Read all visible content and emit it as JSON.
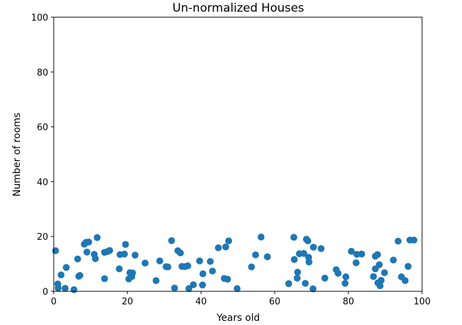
{
  "chart_data": {
    "type": "scatter",
    "title": "Un-normalized Houses",
    "xlabel": "Years old",
    "ylabel": "Number of rooms",
    "xlim": [
      0,
      100
    ],
    "ylim": [
      0,
      100
    ],
    "xticks": [
      "0",
      "20",
      "40",
      "60",
      "80",
      "100"
    ],
    "yticks": [
      "0",
      "20",
      "40",
      "60",
      "80",
      "100"
    ],
    "grid": false,
    "marker_color": "#1f77b4",
    "points": [
      [
        0.5,
        14.8
      ],
      [
        1.2,
        1.2
      ],
      [
        1.1,
        2.7
      ],
      [
        2.0,
        6.0
      ],
      [
        3.4,
        8.7
      ],
      [
        3.1,
        1.1
      ],
      [
        5.5,
        0.6
      ],
      [
        6.8,
        5.5
      ],
      [
        6.5,
        11.8
      ],
      [
        7.1,
        5.8
      ],
      [
        8.3,
        17.2
      ],
      [
        8.8,
        17.9
      ],
      [
        9.0,
        14.3
      ],
      [
        9.5,
        18.0
      ],
      [
        11.0,
        13.5
      ],
      [
        11.3,
        11.9
      ],
      [
        11.8,
        19.6
      ],
      [
        13.8,
        4.6
      ],
      [
        13.8,
        14.2
      ],
      [
        14.6,
        14.5
      ],
      [
        15.2,
        14.9
      ],
      [
        17.8,
        8.2
      ],
      [
        18.0,
        13.4
      ],
      [
        19.2,
        13.6
      ],
      [
        19.5,
        17.1
      ],
      [
        20.4,
        4.5
      ],
      [
        20.7,
        6.8
      ],
      [
        21.2,
        5.4
      ],
      [
        21.4,
        6.7
      ],
      [
        22.1,
        13.2
      ],
      [
        24.8,
        10.3
      ],
      [
        27.8,
        3.9
      ],
      [
        28.8,
        11.1
      ],
      [
        30.5,
        9.0
      ],
      [
        31.0,
        8.9
      ],
      [
        32.0,
        18.5
      ],
      [
        32.8,
        1.2
      ],
      [
        33.7,
        14.8
      ],
      [
        34.4,
        14.0
      ],
      [
        34.8,
        9.1
      ],
      [
        35.6,
        9.0
      ],
      [
        36.4,
        9.3
      ],
      [
        36.7,
        1.0
      ],
      [
        37.9,
        2.4
      ],
      [
        39.6,
        11.1
      ],
      [
        40.4,
        2.3
      ],
      [
        40.5,
        6.4
      ],
      [
        42.5,
        10.9
      ],
      [
        43.1,
        7.4
      ],
      [
        44.7,
        15.9
      ],
      [
        46.3,
        4.7
      ],
      [
        46.7,
        16.2
      ],
      [
        47.2,
        4.4
      ],
      [
        47.5,
        18.4
      ],
      [
        49.8,
        1.0
      ],
      [
        53.7,
        8.9
      ],
      [
        54.8,
        13.3
      ],
      [
        56.3,
        19.8
      ],
      [
        58.0,
        12.6
      ],
      [
        63.8,
        2.8
      ],
      [
        65.2,
        19.7
      ],
      [
        65.3,
        11.6
      ],
      [
        66.1,
        4.8
      ],
      [
        66.2,
        7.0
      ],
      [
        66.7,
        13.7
      ],
      [
        67.9,
        13.8
      ],
      [
        68.3,
        2.9
      ],
      [
        68.6,
        19.0
      ],
      [
        69.0,
        18.4
      ],
      [
        69.2,
        12.4
      ],
      [
        69.3,
        10.7
      ],
      [
        70.4,
        0.9
      ],
      [
        70.5,
        16.1
      ],
      [
        72.6,
        15.6
      ],
      [
        73.6,
        4.8
      ],
      [
        76.7,
        7.9
      ],
      [
        77.2,
        6.6
      ],
      [
        79.1,
        2.9
      ],
      [
        79.3,
        5.3
      ],
      [
        80.8,
        14.6
      ],
      [
        82.1,
        10.4
      ],
      [
        82.3,
        13.5
      ],
      [
        83.6,
        13.6
      ],
      [
        86.8,
        5.4
      ],
      [
        87.3,
        8.2
      ],
      [
        87.3,
        12.8
      ],
      [
        87.9,
        13.4
      ],
      [
        88.0,
        3.1
      ],
      [
        88.4,
        9.7
      ],
      [
        88.6,
        2.0
      ],
      [
        88.9,
        4.0
      ],
      [
        89.8,
        6.8
      ],
      [
        92.2,
        11.4
      ],
      [
        93.5,
        18.3
      ],
      [
        94.4,
        5.3
      ],
      [
        95.4,
        3.9
      ],
      [
        96.2,
        9.1
      ],
      [
        96.7,
        18.7
      ],
      [
        97.8,
        18.7
      ]
    ]
  }
}
